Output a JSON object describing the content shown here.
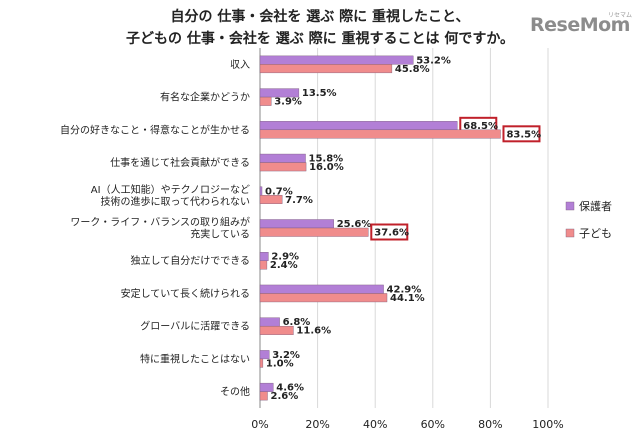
{
  "title_line1": "自分の 仕事・会社を 選ぶ 際に 重視したこと、",
  "title_line2": "子どもの 仕事・会社を 選ぶ 際に 重視することは 何ですか。",
  "logo": "ReseMom",
  "logo_sub": "リセマム",
  "colors": {
    "guardian": "#b27fd6",
    "child": "#f08c8c",
    "highlight": "#c0202a",
    "grid": "#d9d9d9"
  },
  "chart_data": {
    "type": "bar",
    "orientation": "horizontal",
    "categories": [
      [
        "収入"
      ],
      [
        "有名な企業かどうか"
      ],
      [
        "自分の好きなこと・得意なことが生かせる"
      ],
      [
        "仕事を通じて社会貢献ができる"
      ],
      [
        "AI（人工知能）やテクノロジーなど",
        "技術の進歩に取って代わられない"
      ],
      [
        "ワーク・ライフ・バランスの取り組みが",
        "充実している"
      ],
      [
        "独立して自分だけでできる"
      ],
      [
        "安定していて長く続けられる"
      ],
      [
        "グローバルに活躍できる"
      ],
      [
        "特に重視したことはない"
      ],
      [
        "その他"
      ]
    ],
    "series": [
      {
        "name": "保護者",
        "values": [
          53.2,
          13.5,
          68.5,
          15.8,
          0.7,
          25.6,
          2.9,
          42.9,
          6.8,
          3.2,
          4.6
        ]
      },
      {
        "name": "子ども",
        "values": [
          45.8,
          3.9,
          83.5,
          16.0,
          7.7,
          37.6,
          2.4,
          44.1,
          11.6,
          1.0,
          2.6
        ]
      }
    ],
    "highlighted": [
      {
        "series": 0,
        "index": 2
      },
      {
        "series": 1,
        "index": 2
      },
      {
        "series": 1,
        "index": 5
      }
    ],
    "xlim": [
      0,
      100
    ],
    "xticks": [
      "0%",
      "20%",
      "40%",
      "60%",
      "80%",
      "100%"
    ],
    "grid": true,
    "legend_position": "right"
  }
}
